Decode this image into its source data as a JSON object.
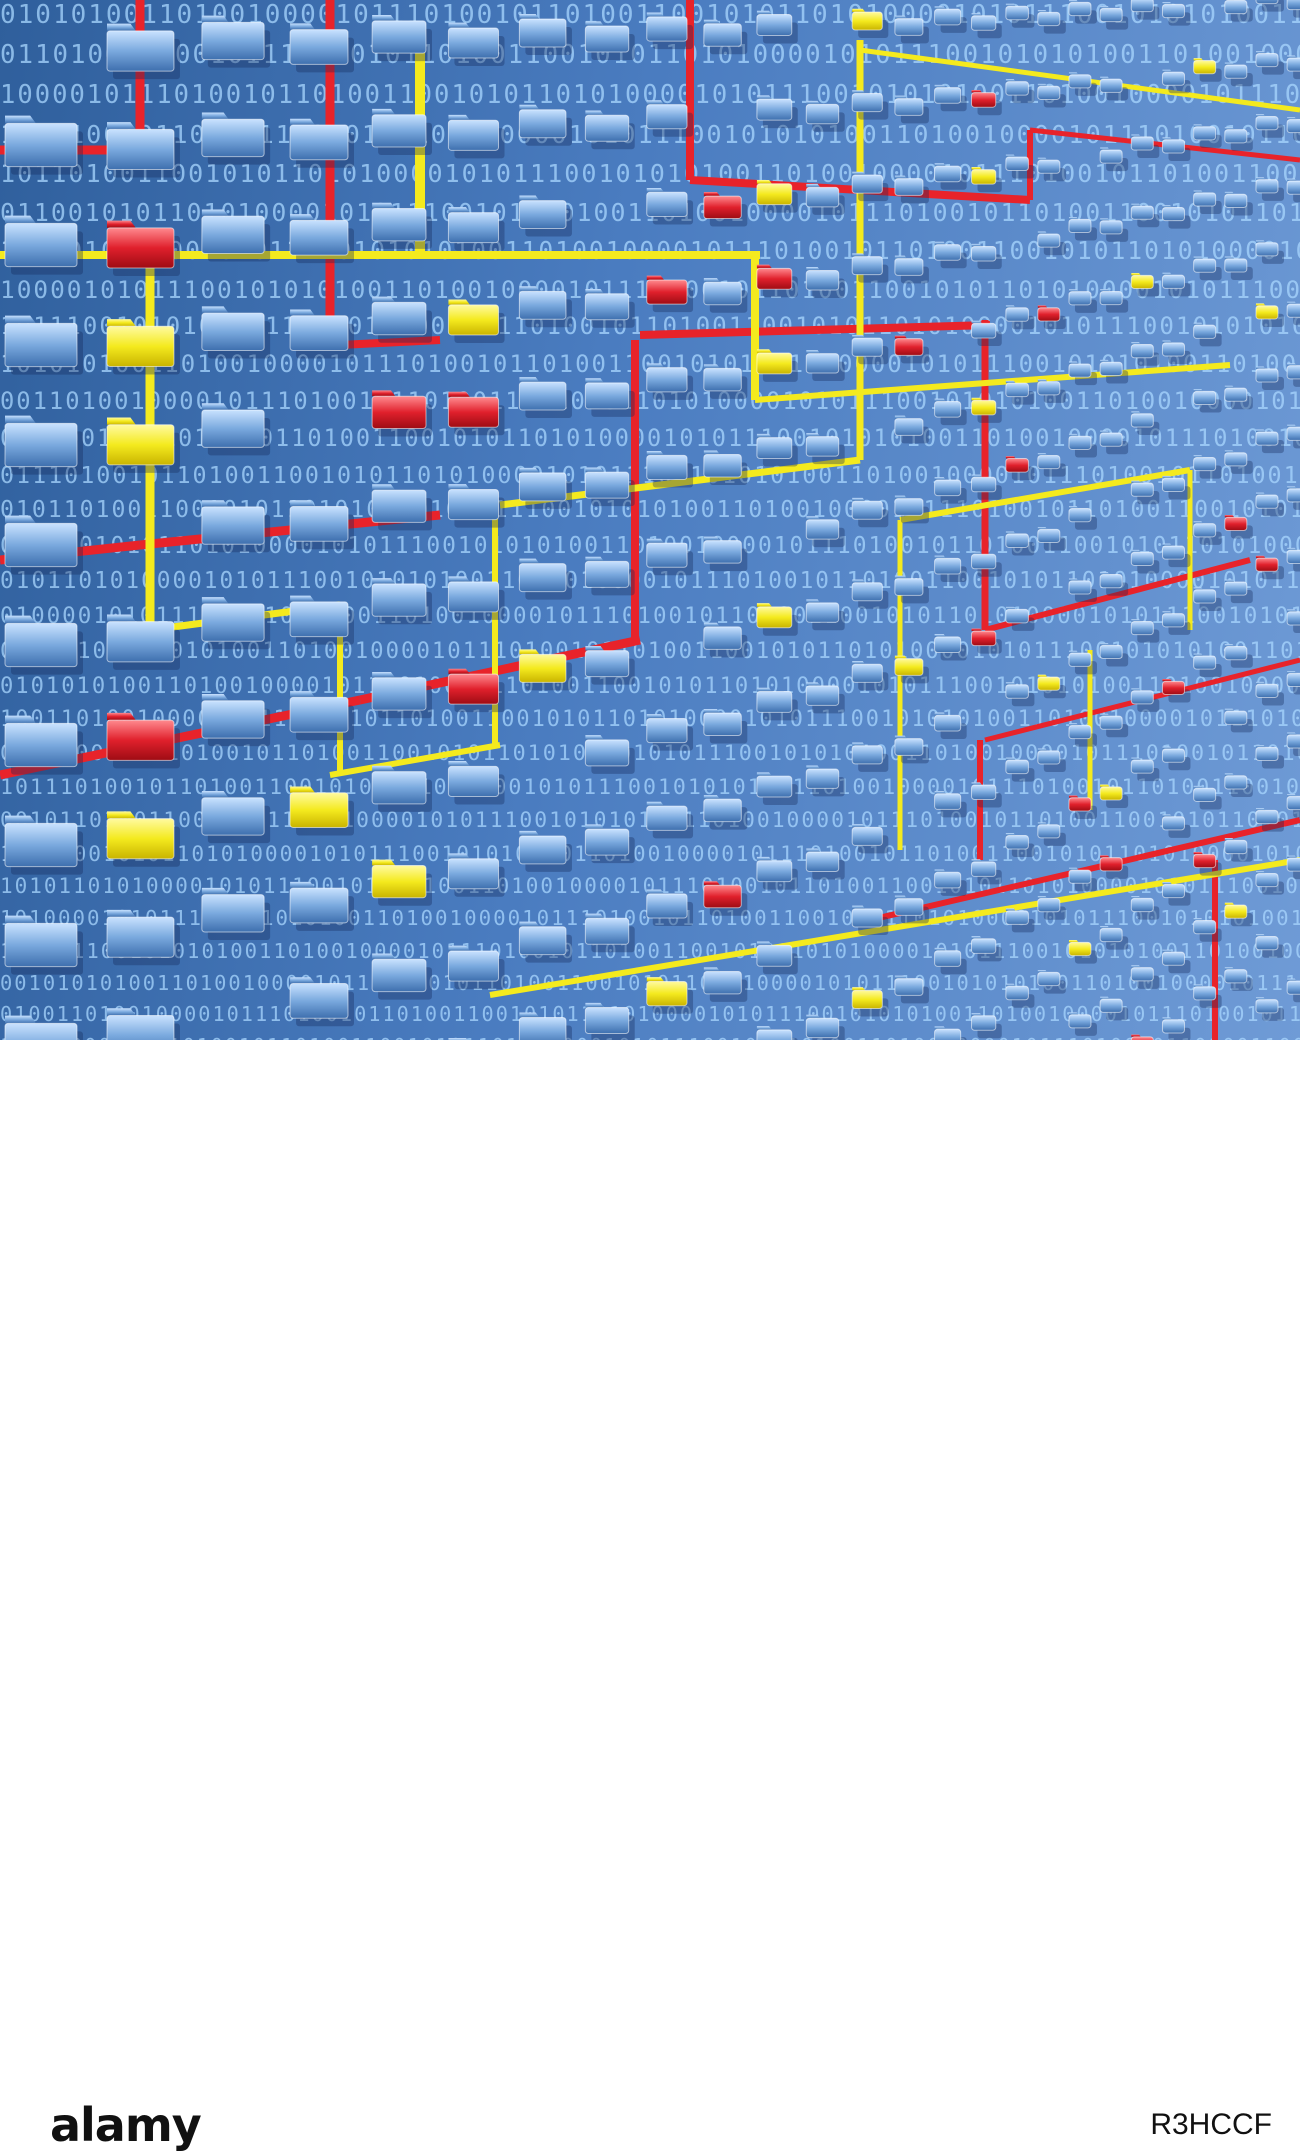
{
  "image": {
    "subject": "folder network over binary code",
    "palette": {
      "background_dark": "#2f5f9c",
      "background_light": "#6f9bd6",
      "binary_text": "#a9d7ff",
      "folder_blue": "#7aa9de",
      "folder_yellow": "#f4ea1e",
      "folder_red": "#e0202c",
      "line_red": "#e8232a",
      "line_yellow": "#f4ea1e"
    },
    "binary_pattern": "0101010011010010000101110100101101001100101011010100001010111001"
  },
  "footer": {
    "logo": "alamy",
    "stock_id": "R3HCCF"
  }
}
